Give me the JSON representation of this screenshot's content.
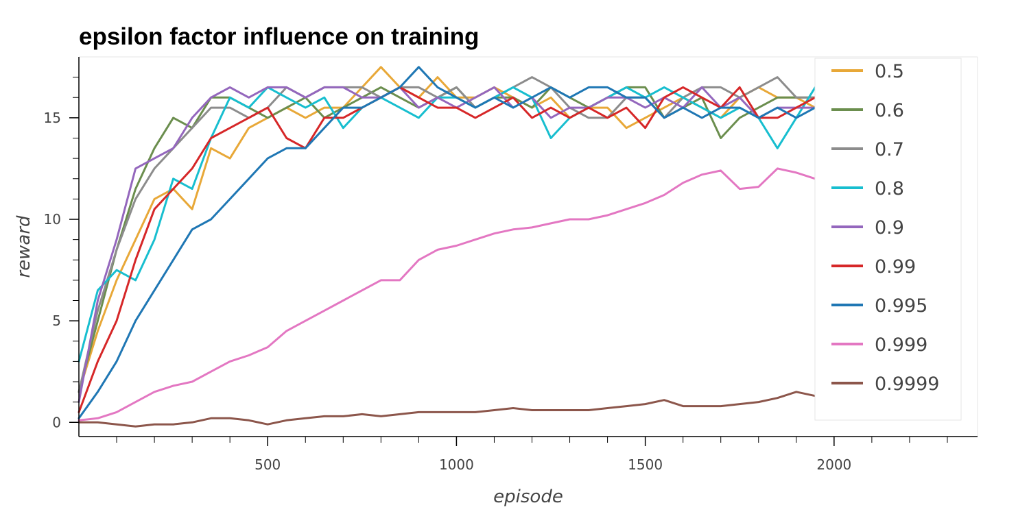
{
  "chart_data": {
    "type": "line",
    "title": "epsilon factor influence on training",
    "xlabel": "episode",
    "ylabel": "reward",
    "xlim": [
      0,
      2380
    ],
    "ylim": [
      -0.7,
      18
    ],
    "x_ticks": [
      500,
      1000,
      1500,
      2000
    ],
    "y_ticks": [
      0,
      5,
      10,
      15
    ],
    "grid": false,
    "legend_position": "right",
    "x": [
      0,
      50,
      100,
      150,
      200,
      250,
      300,
      350,
      400,
      450,
      500,
      550,
      600,
      650,
      700,
      750,
      800,
      850,
      900,
      950,
      1000,
      1050,
      1100,
      1150,
      1200,
      1250,
      1300,
      1350,
      1400,
      1450,
      1500,
      1550,
      1600,
      1650,
      1700,
      1750,
      1800,
      1850,
      1900,
      1950
    ],
    "series": [
      {
        "name": "0.5",
        "color": "#e8a838",
        "values": [
          1.5,
          4.5,
          7.0,
          9.0,
          11.0,
          11.5,
          10.5,
          13.5,
          13.0,
          14.5,
          15.0,
          15.5,
          15.0,
          15.5,
          15.5,
          16.5,
          17.5,
          16.5,
          16.0,
          17.0,
          16.0,
          16.0,
          16.5,
          16.0,
          15.5,
          16.0,
          15.0,
          15.5,
          15.5,
          14.5,
          15.0,
          15.5,
          16.0,
          15.5,
          15.0,
          16.0,
          16.5,
          16.0,
          16.0,
          15.5
        ]
      },
      {
        "name": "0.6",
        "color": "#6b8e4e",
        "values": [
          1.5,
          5.0,
          8.5,
          11.5,
          13.5,
          15.0,
          14.5,
          16.0,
          16.0,
          15.5,
          15.0,
          15.5,
          16.0,
          15.0,
          15.5,
          16.0,
          16.5,
          16.0,
          15.5,
          16.0,
          16.5,
          15.5,
          16.0,
          16.0,
          15.5,
          16.5,
          16.0,
          15.5,
          16.0,
          16.5,
          16.5,
          15.0,
          15.5,
          16.0,
          14.0,
          15.0,
          15.5,
          16.0,
          16.0,
          16.0
        ]
      },
      {
        "name": "0.7",
        "color": "#8c8c8c",
        "values": [
          1.5,
          5.5,
          8.5,
          11.0,
          12.5,
          13.5,
          14.5,
          15.5,
          15.5,
          15.0,
          15.5,
          16.5,
          16.0,
          16.5,
          16.5,
          16.5,
          16.0,
          16.5,
          16.5,
          16.0,
          16.5,
          15.5,
          16.0,
          16.5,
          17.0,
          16.5,
          15.5,
          15.0,
          15.0,
          16.0,
          16.0,
          15.0,
          16.0,
          16.5,
          16.5,
          16.0,
          16.5,
          17.0,
          16.0,
          16.0
        ]
      },
      {
        "name": "0.8",
        "color": "#17becf",
        "values": [
          3.0,
          6.5,
          7.5,
          7.0,
          9.0,
          12.0,
          11.5,
          14.0,
          16.0,
          15.5,
          16.5,
          16.0,
          15.5,
          16.0,
          14.5,
          15.5,
          16.0,
          15.5,
          15.0,
          16.0,
          16.0,
          15.5,
          16.0,
          16.5,
          16.0,
          14.0,
          15.0,
          15.5,
          16.0,
          16.5,
          16.0,
          16.5,
          16.0,
          15.5,
          15.0,
          15.5,
          15.0,
          13.5,
          15.0,
          16.5
        ]
      },
      {
        "name": "0.9",
        "color": "#9467bd",
        "values": [
          1.0,
          6.0,
          9.0,
          12.5,
          13.0,
          13.5,
          15.0,
          16.0,
          16.5,
          16.0,
          16.5,
          16.5,
          16.0,
          16.5,
          16.5,
          16.0,
          16.0,
          16.5,
          15.5,
          16.0,
          15.5,
          16.0,
          16.5,
          15.5,
          16.0,
          15.0,
          15.5,
          15.5,
          16.0,
          16.0,
          15.5,
          16.0,
          15.5,
          16.5,
          15.5,
          16.0,
          15.0,
          15.5,
          15.5,
          15.5
        ]
      },
      {
        "name": "0.99",
        "color": "#d62728",
        "values": [
          0.5,
          3.0,
          5.0,
          8.0,
          10.5,
          11.5,
          12.5,
          14.0,
          14.5,
          15.0,
          15.5,
          14.0,
          13.5,
          15.0,
          15.0,
          15.5,
          16.0,
          16.5,
          16.0,
          15.5,
          15.5,
          15.0,
          15.5,
          16.0,
          15.0,
          15.5,
          15.0,
          15.5,
          15.0,
          15.5,
          14.5,
          16.0,
          16.5,
          16.0,
          15.5,
          16.5,
          15.0,
          15.0,
          15.5,
          16.0
        ]
      },
      {
        "name": "0.995",
        "color": "#1f77b4",
        "values": [
          0.2,
          1.5,
          3.0,
          5.0,
          6.5,
          8.0,
          9.5,
          10.0,
          11.0,
          12.0,
          13.0,
          13.5,
          13.5,
          14.5,
          15.5,
          15.5,
          16.0,
          16.5,
          17.5,
          16.5,
          16.0,
          15.5,
          16.0,
          15.5,
          16.0,
          16.5,
          16.0,
          16.5,
          16.5,
          16.0,
          16.0,
          15.0,
          15.5,
          15.0,
          15.5,
          15.5,
          15.0,
          15.5,
          15.0,
          15.5
        ]
      },
      {
        "name": "0.999",
        "color": "#e377c2",
        "values": [
          0.1,
          0.2,
          0.5,
          1.0,
          1.5,
          1.8,
          2.0,
          2.5,
          3.0,
          3.3,
          3.7,
          4.5,
          5.0,
          5.5,
          6.0,
          6.5,
          7.0,
          7.0,
          8.0,
          8.5,
          8.7,
          9.0,
          9.3,
          9.5,
          9.6,
          9.8,
          10.0,
          10.0,
          10.2,
          10.5,
          10.8,
          11.2,
          11.8,
          12.2,
          12.4,
          11.5,
          11.6,
          12.5,
          12.3,
          12.0
        ]
      },
      {
        "name": "0.9999",
        "color": "#8c564b",
        "values": [
          0.0,
          0.0,
          -0.1,
          -0.2,
          -0.1,
          -0.1,
          0.0,
          0.2,
          0.2,
          0.1,
          -0.1,
          0.1,
          0.2,
          0.3,
          0.3,
          0.4,
          0.3,
          0.4,
          0.5,
          0.5,
          0.5,
          0.5,
          0.6,
          0.7,
          0.6,
          0.6,
          0.6,
          0.6,
          0.7,
          0.8,
          0.9,
          1.1,
          0.8,
          0.8,
          0.8,
          0.9,
          1.0,
          1.2,
          1.5,
          1.3
        ]
      }
    ]
  }
}
